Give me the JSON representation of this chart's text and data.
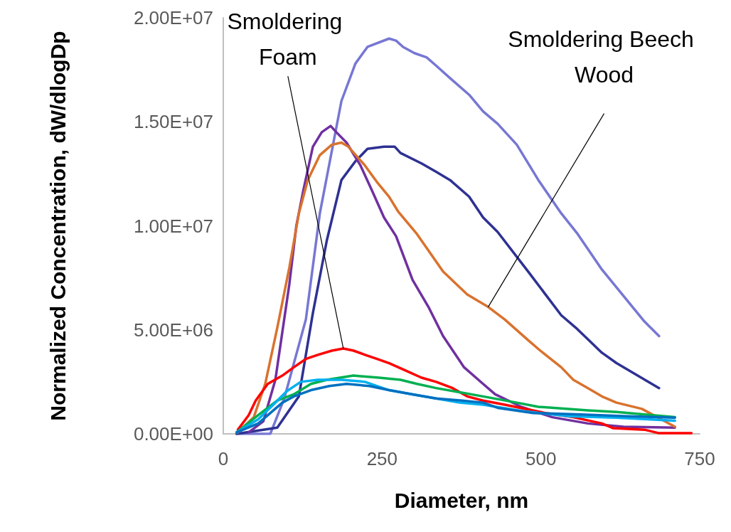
{
  "chart_data": {
    "type": "line",
    "xlabel": "Diameter, nm",
    "ylabel": "Normalized Concentration, dW/dlogDp",
    "xlim": [
      0,
      750
    ],
    "xticks": [
      0,
      250,
      500,
      750
    ],
    "ylim": [
      0,
      20000000.0
    ],
    "yticks": [
      {
        "value": 0,
        "label": "0.00E+00"
      },
      {
        "value": 5000000.0,
        "label": "5.00E+06"
      },
      {
        "value": 10000000.0,
        "label": "1.00E+07"
      },
      {
        "value": 15000000.0,
        "label": "1.50E+07"
      },
      {
        "value": 20000000.0,
        "label": "2.00E+07"
      }
    ],
    "grid": false,
    "marker": "none",
    "line_style": "solid",
    "annotations": [
      {
        "text": "Smoldering Foam",
        "x": 189,
        "y": 4100000.0
      },
      {
        "text": "Smoldering Beech Wood",
        "x": 417,
        "y": 6100000.0
      }
    ],
    "series": [
      {
        "color": "#7777d4",
        "x": [
          21,
          74,
          96,
          130,
          152,
          186,
          208,
          227,
          261,
          272,
          283,
          301,
          320,
          335,
          357,
          387,
          409,
          432,
          462,
          496,
          532,
          558,
          596,
          663,
          686
        ],
        "values": [
          0,
          0,
          1700000.0,
          5500000.0,
          10600000.0,
          16000000.0,
          17800000.0,
          18600000.0,
          19000000.0,
          18900000.0,
          18600000.0,
          18300000.0,
          18100000.0,
          17700000.0,
          17100000.0,
          16300000.0,
          15500000.0,
          14900000.0,
          13900000.0,
          12200000.0,
          10600000.0,
          9600000.0,
          7900000.0,
          5400000.0,
          4700000.0
        ]
      },
      {
        "color": "#2e3192",
        "x": [
          21,
          85,
          119,
          141,
          163,
          186,
          208,
          227,
          253,
          270,
          279,
          312,
          335,
          357,
          387,
          409,
          432,
          480,
          532,
          555,
          596,
          619,
          686
        ],
        "values": [
          0,
          300000.0,
          1800000.0,
          5800000.0,
          9300000.0,
          12200000.0,
          13100000.0,
          13700000.0,
          13800000.0,
          13800000.0,
          13500000.0,
          13000000.0,
          12600000.0,
          12200000.0,
          11400000.0,
          10400000.0,
          9700000.0,
          7800000.0,
          5700000.0,
          5100000.0,
          3900000.0,
          3400000.0,
          2200000.0
        ]
      },
      {
        "color": "#7030a0",
        "x": [
          40,
          63,
          82,
          104,
          115,
          126,
          141,
          155,
          169,
          178,
          194,
          216,
          234,
          253,
          272,
          298,
          323,
          346,
          379,
          409,
          428,
          469,
          518,
          574,
          630,
          711
        ],
        "values": [
          70000.0,
          600000.0,
          2600000.0,
          7200000.0,
          10000000.0,
          11700000.0,
          13800000.0,
          14500000.0,
          14800000.0,
          14500000.0,
          14000000.0,
          12900000.0,
          11700000.0,
          10400000.0,
          9500000.0,
          7400000.0,
          6100000.0,
          4700000.0,
          3200000.0,
          2400000.0,
          1900000.0,
          1300000.0,
          800000.0,
          500000.0,
          340000.0,
          300000.0
        ]
      },
      {
        "color": "#d9722e",
        "x": [
          23,
          48,
          66,
          85,
          104,
          119,
          133,
          152,
          171,
          186,
          197,
          223,
          242,
          261,
          275,
          305,
          346,
          384,
          417,
          443,
          480,
          499,
          532,
          551,
          574,
          596,
          619,
          659,
          711
        ],
        "values": [
          70000.0,
          800000.0,
          2400000.0,
          5100000.0,
          8000000.0,
          10600000.0,
          12200000.0,
          13400000.0,
          13900000.0,
          14000000.0,
          13800000.0,
          12900000.0,
          12100000.0,
          11400000.0,
          10700000.0,
          9600000.0,
          7800000.0,
          6700000.0,
          6100000.0,
          5500000.0,
          4500000.0,
          4000000.0,
          3200000.0,
          2600000.0,
          2200000.0,
          1800000.0,
          1500000.0,
          1200000.0,
          340000.0
        ]
      },
      {
        "color": "#ff0000",
        "x": [
          23,
          40,
          51,
          70,
          93,
          111,
          130,
          149,
          171,
          189,
          205,
          223,
          242,
          261,
          283,
          312,
          335,
          361,
          384,
          409,
          443,
          507,
          551,
          596,
          614,
          663,
          686,
          737
        ],
        "values": [
          200000.0,
          900000.0,
          1600000.0,
          2400000.0,
          2800000.0,
          3200000.0,
          3600000.0,
          3800000.0,
          4000000.0,
          4100000.0,
          4000000.0,
          3800000.0,
          3600000.0,
          3400000.0,
          3100000.0,
          2700000.0,
          2500000.0,
          2200000.0,
          1800000.0,
          1600000.0,
          1400000.0,
          1000000.0,
          800000.0,
          500000.0,
          270000.0,
          200000.0,
          30000.0,
          30000.0
        ]
      },
      {
        "color": "#00b050",
        "x": [
          21,
          55,
          85,
          111,
          138,
          163,
          205,
          245,
          279,
          305,
          335,
          372,
          409,
          462,
          496,
          574,
          619,
          711
        ],
        "values": [
          70000.0,
          900000.0,
          1600000.0,
          1900000.0,
          2400000.0,
          2600000.0,
          2800000.0,
          2700000.0,
          2600000.0,
          2400000.0,
          2200000.0,
          2000000.0,
          1800000.0,
          1500000.0,
          1300000.0,
          1130000.0,
          1050000.0,
          800000.0
        ]
      },
      {
        "color": "#00b0f0",
        "x": [
          21,
          55,
          82,
          100,
          122,
          149,
          186,
          223,
          261,
          298,
          335,
          372,
          409,
          469,
          544,
          619,
          711
        ],
        "values": [
          70000.0,
          700000.0,
          1500000.0,
          2050000.0,
          2500000.0,
          2600000.0,
          2600000.0,
          2500000.0,
          2100000.0,
          1900000.0,
          1700000.0,
          1500000.0,
          1400000.0,
          1100000.0,
          850000.0,
          780000.0,
          630000.0
        ]
      },
      {
        "color": "#0070c0",
        "x": [
          21,
          55,
          93,
          111,
          138,
          167,
          194,
          230,
          261,
          298,
          335,
          376,
          409,
          432,
          488,
          563,
          636,
          711
        ],
        "values": [
          70000.0,
          500000.0,
          1500000.0,
          1800000.0,
          2100000.0,
          2300000.0,
          2400000.0,
          2300000.0,
          2100000.0,
          1900000.0,
          1700000.0,
          1600000.0,
          1500000.0,
          1250000.0,
          1000000.0,
          930000.0,
          850000.0,
          780000.0
        ]
      }
    ]
  }
}
